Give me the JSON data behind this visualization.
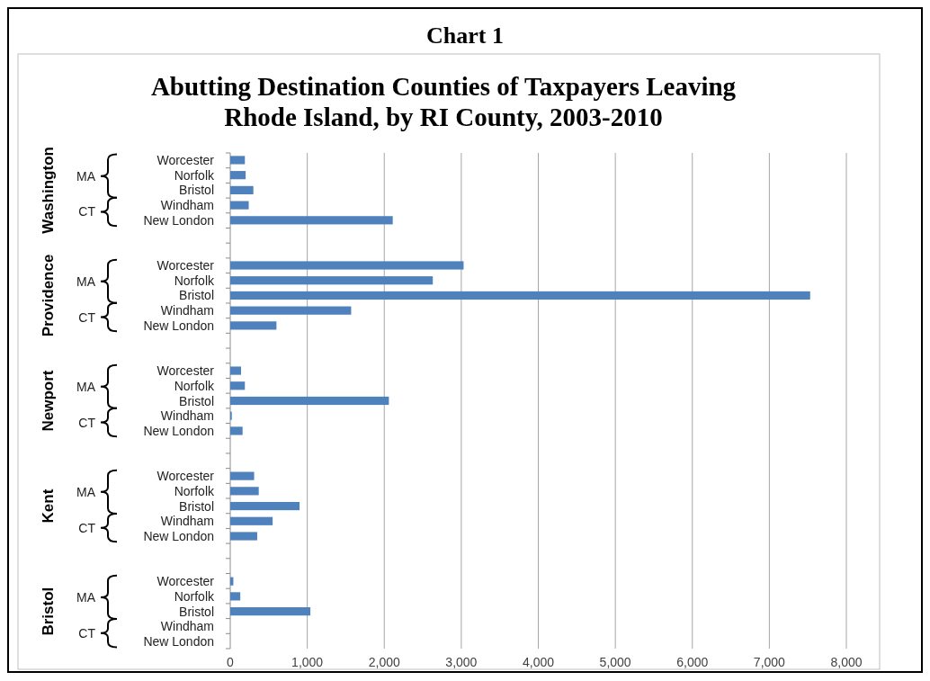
{
  "chart_data": {
    "type": "bar",
    "orientation": "horizontal",
    "title": "Abutting Destination Counties of Taxpayers Leaving Rhode Island, by RI County, 2003-2010",
    "annotations": [
      "Chart 1",
      "Washington",
      "Providence",
      "Newport",
      "Kent",
      "Bristol",
      "MA",
      "CT"
    ],
    "categories": [
      "Worcester",
      "Norfolk",
      "Bristol",
      "Windham",
      "New London",
      null,
      null,
      "Worcester",
      "Norfolk",
      "Bristol",
      "Windham",
      "New London",
      null,
      null,
      "Worcester",
      "Norfolk",
      "Bristol",
      "Windham",
      "New London",
      null,
      null,
      "Worcester",
      "Norfolk",
      "Bristol",
      "Windham",
      "New London",
      null,
      null,
      "Worcester",
      "Norfolk",
      "Bristol",
      "Windham",
      "New London"
    ],
    "values": [
      190,
      200,
      300,
      240,
      2110,
      null,
      null,
      3030,
      2630,
      7530,
      1570,
      600,
      null,
      null,
      140,
      190,
      2060,
      20,
      160,
      null,
      null,
      310,
      370,
      900,
      550,
      350,
      null,
      null,
      40,
      130,
      1040,
      0,
      0
    ],
    "color": "#4f81bd",
    "xlim": [
      0,
      8000
    ],
    "xticks": [
      {
        "value": 0,
        "label": "0"
      },
      {
        "value": 1000,
        "label": "1,000"
      },
      {
        "value": 2000,
        "label": "2,000"
      },
      {
        "value": 3000,
        "label": "3,000"
      },
      {
        "value": 4000,
        "label": "4,000"
      },
      {
        "value": 5000,
        "label": "5,000"
      },
      {
        "value": 6000,
        "label": "6,000"
      },
      {
        "value": 7000,
        "label": "7,000"
      },
      {
        "value": 8000,
        "label": "8,000"
      }
    ],
    "grid": "x"
  }
}
